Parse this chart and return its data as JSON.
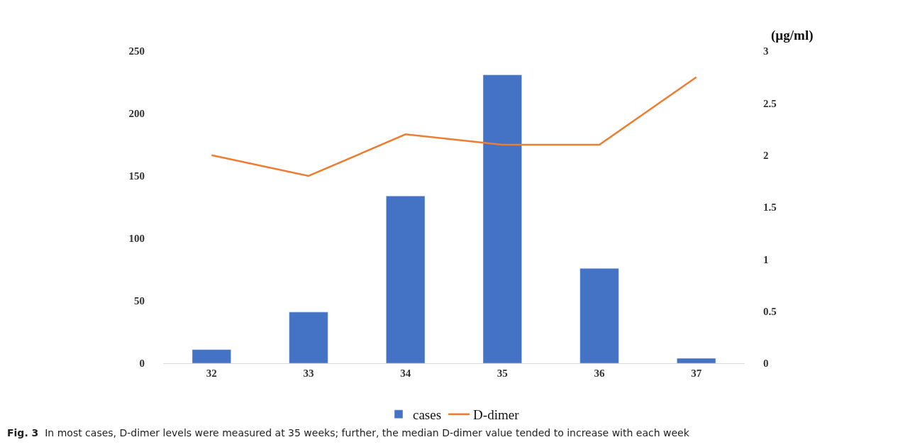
{
  "chart_data": {
    "type": "bar",
    "categories": [
      "32",
      "33",
      "34",
      "35",
      "36",
      "37"
    ],
    "series": [
      {
        "name": "cases",
        "color": "#4472c4",
        "values": [
          11,
          41,
          134,
          231,
          76,
          4
        ]
      },
      {
        "name": "D-dimer",
        "color": "#ed7d31",
        "type": "line",
        "axis": "y2",
        "values": [
          2.0,
          1.8,
          2.2,
          2.1,
          2.1,
          2.75
        ]
      }
    ],
    "ylim": [
      0,
      250
    ],
    "yticks": [
      0,
      50,
      100,
      150,
      200,
      250
    ],
    "y2lim": [
      0,
      3
    ],
    "y2ticks": [
      0,
      0.5,
      1,
      1.5,
      2,
      2.5,
      3
    ],
    "y2label": "(µg/ml)",
    "legend": "bottom",
    "marker": "none",
    "line_style": "solid",
    "annotations": [
      "Fig. 3  In most cases, D-dimer levels were measured at 35 weeks; further, the median D-dimer value tended to increase with each week"
    ]
  }
}
